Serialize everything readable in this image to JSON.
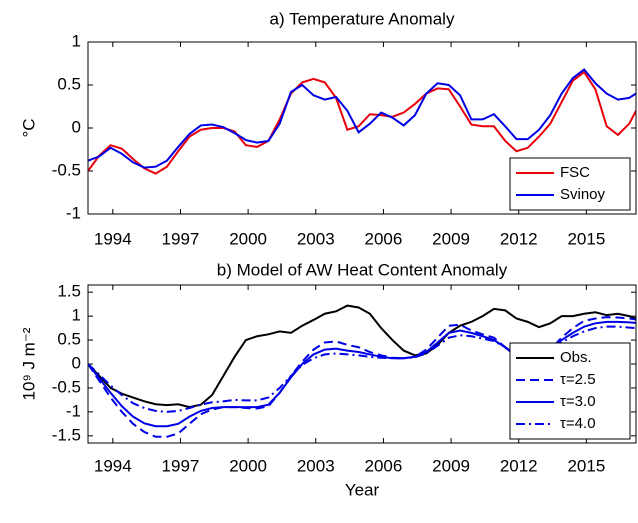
{
  "chart_data": [
    {
      "type": "line",
      "title": "a) Temperature Anomaly",
      "ylabel": "°C",
      "x": [
        1992.9,
        1993.4,
        1993.9,
        1994.4,
        1994.9,
        1995.4,
        1995.9,
        1996.4,
        1996.9,
        1997.4,
        1997.9,
        1998.4,
        1998.9,
        1999.4,
        1999.9,
        2000.4,
        2000.9,
        2001.4,
        2001.9,
        2002.4,
        2002.9,
        2003.4,
        2003.9,
        2004.4,
        2004.9,
        2005.4,
        2005.9,
        2006.4,
        2006.9,
        2007.4,
        2007.9,
        2008.4,
        2008.9,
        2009.4,
        2009.9,
        2010.4,
        2010.9,
        2011.4,
        2011.9,
        2012.4,
        2012.9,
        2013.4,
        2013.9,
        2014.4,
        2014.9,
        2015.4,
        2015.9,
        2016.4,
        2016.9,
        2017.2
      ],
      "series": [
        {
          "name": "FSC",
          "color": "#e8000b",
          "linestyle": "solid",
          "values": [
            -0.5,
            -0.32,
            -0.2,
            -0.24,
            -0.36,
            -0.47,
            -0.53,
            -0.45,
            -0.27,
            -0.1,
            -0.02,
            0,
            0,
            -0.04,
            -0.2,
            -0.22,
            -0.15,
            0.1,
            0.4,
            0.53,
            0.57,
            0.53,
            0.35,
            -0.02,
            0.02,
            0.16,
            0.15,
            0.13,
            0.18,
            0.28,
            0.4,
            0.46,
            0.45,
            0.25,
            0.04,
            0.02,
            0.02,
            -0.15,
            -0.27,
            -0.23,
            -0.1,
            0.05,
            0.3,
            0.55,
            0.65,
            0.45,
            0.02,
            -0.08,
            0.05,
            0.2
          ]
        },
        {
          "name": "Svinoy",
          "color": "#0000e6",
          "linestyle": "solid",
          "values": [
            -0.38,
            -0.33,
            -0.23,
            -0.3,
            -0.4,
            -0.46,
            -0.45,
            -0.38,
            -0.22,
            -0.07,
            0.03,
            0.04,
            0.01,
            -0.06,
            -0.14,
            -0.17,
            -0.15,
            0.05,
            0.42,
            0.5,
            0.38,
            0.33,
            0.36,
            0.2,
            -0.05,
            0.05,
            0.18,
            0.12,
            0.03,
            0.15,
            0.4,
            0.52,
            0.5,
            0.38,
            0.1,
            0.1,
            0.16,
            0.02,
            -0.13,
            -0.13,
            -0.02,
            0.15,
            0.4,
            0.58,
            0.68,
            0.52,
            0.4,
            0.33,
            0.35,
            0.4
          ]
        }
      ],
      "xlim": [
        1992.9,
        2017.2
      ],
      "xticks": [
        1994,
        1997,
        2000,
        2003,
        2006,
        2009,
        2012,
        2015
      ],
      "ylim": [
        -1,
        1
      ],
      "yticks": [
        -1,
        -0.5,
        0,
        0.5,
        1
      ],
      "legend": "lower right"
    },
    {
      "type": "line",
      "title": "b) Model of AW Heat Content Anomaly",
      "ylabel": "10⁹ J m⁻²",
      "xlabel": "Year",
      "x": [
        1992.9,
        1993.4,
        1993.9,
        1994.4,
        1994.9,
        1995.4,
        1995.9,
        1996.4,
        1996.9,
        1997.4,
        1997.9,
        1998.4,
        1998.9,
        1999.4,
        1999.9,
        2000.4,
        2000.9,
        2001.4,
        2001.9,
        2002.4,
        2002.9,
        2003.4,
        2003.9,
        2004.4,
        2004.9,
        2005.4,
        2005.9,
        2006.4,
        2006.9,
        2007.4,
        2007.9,
        2008.4,
        2008.9,
        2009.4,
        2009.9,
        2010.4,
        2010.9,
        2011.4,
        2011.9,
        2012.4,
        2012.9,
        2013.4,
        2013.9,
        2014.4,
        2014.9,
        2015.4,
        2015.9,
        2016.4,
        2016.9,
        2017.2
      ],
      "series": [
        {
          "name": "Obs.",
          "color": "#000000",
          "linestyle": "solid",
          "values": [
            0,
            -0.25,
            -0.5,
            -0.62,
            -0.7,
            -0.78,
            -0.84,
            -0.86,
            -0.84,
            -0.9,
            -0.85,
            -0.65,
            -0.25,
            0.15,
            0.5,
            0.58,
            0.62,
            0.68,
            0.65,
            0.8,
            0.92,
            1.05,
            1.1,
            1.22,
            1.18,
            1.05,
            0.75,
            0.5,
            0.28,
            0.18,
            0.22,
            0.4,
            0.65,
            0.8,
            0.88,
            1,
            1.15,
            1.12,
            0.95,
            0.88,
            0.77,
            0.85,
            1,
            1,
            1.05,
            1.08,
            1.02,
            1.05,
            1,
            0.95
          ]
        },
        {
          "name": "τ=2.5",
          "color": "#0000e6",
          "linestyle": "dashed",
          "values": [
            0,
            -0.35,
            -0.7,
            -1,
            -1.25,
            -1.42,
            -1.52,
            -1.52,
            -1.45,
            -1.25,
            -1.05,
            -0.95,
            -0.9,
            -0.9,
            -0.92,
            -0.93,
            -0.88,
            -0.6,
            -0.25,
            0.05,
            0.3,
            0.45,
            0.47,
            0.4,
            0.35,
            0.25,
            0.18,
            0.13,
            0.12,
            0.15,
            0.3,
            0.55,
            0.8,
            0.82,
            0.7,
            0.62,
            0.55,
            0.35,
            0.1,
            -0.02,
            0.05,
            0.3,
            0.55,
            0.75,
            0.9,
            0.95,
            0.98,
            0.97,
            0.95,
            0.93
          ]
        },
        {
          "name": "τ=3.0",
          "color": "#0000e6",
          "linestyle": "solid",
          "values": [
            0,
            -0.3,
            -0.6,
            -0.88,
            -1.1,
            -1.24,
            -1.3,
            -1.3,
            -1.25,
            -1.1,
            -0.98,
            -0.92,
            -0.9,
            -0.9,
            -0.9,
            -0.9,
            -0.85,
            -0.6,
            -0.28,
            0,
            0.2,
            0.3,
            0.32,
            0.28,
            0.25,
            0.2,
            0.15,
            0.12,
            0.12,
            0.15,
            0.25,
            0.45,
            0.65,
            0.7,
            0.65,
            0.58,
            0.5,
            0.35,
            0.15,
            0.08,
            0.1,
            0.3,
            0.5,
            0.65,
            0.78,
            0.85,
            0.88,
            0.88,
            0.87,
            0.86
          ]
        },
        {
          "name": "τ=4.0",
          "color": "#0000e6",
          "linestyle": "dashdot",
          "values": [
            0,
            -0.22,
            -0.45,
            -0.65,
            -0.82,
            -0.92,
            -0.98,
            -1,
            -0.98,
            -0.92,
            -0.85,
            -0.8,
            -0.78,
            -0.75,
            -0.76,
            -0.76,
            -0.7,
            -0.5,
            -0.25,
            -0.02,
            0.12,
            0.2,
            0.22,
            0.2,
            0.18,
            0.15,
            0.13,
            0.12,
            0.12,
            0.14,
            0.22,
            0.38,
            0.55,
            0.6,
            0.58,
            0.53,
            0.48,
            0.35,
            0.2,
            0.15,
            0.15,
            0.3,
            0.45,
            0.58,
            0.68,
            0.75,
            0.78,
            0.78,
            0.76,
            0.75
          ]
        }
      ],
      "xlim": [
        1992.9,
        2017.2
      ],
      "xticks": [
        1994,
        1997,
        2000,
        2003,
        2006,
        2009,
        2012,
        2015
      ],
      "ylim": [
        -1.65,
        1.65
      ],
      "yticks": [
        -1.5,
        -1,
        -0.5,
        0,
        0.5,
        1,
        1.5
      ],
      "legend": "lower right"
    }
  ]
}
